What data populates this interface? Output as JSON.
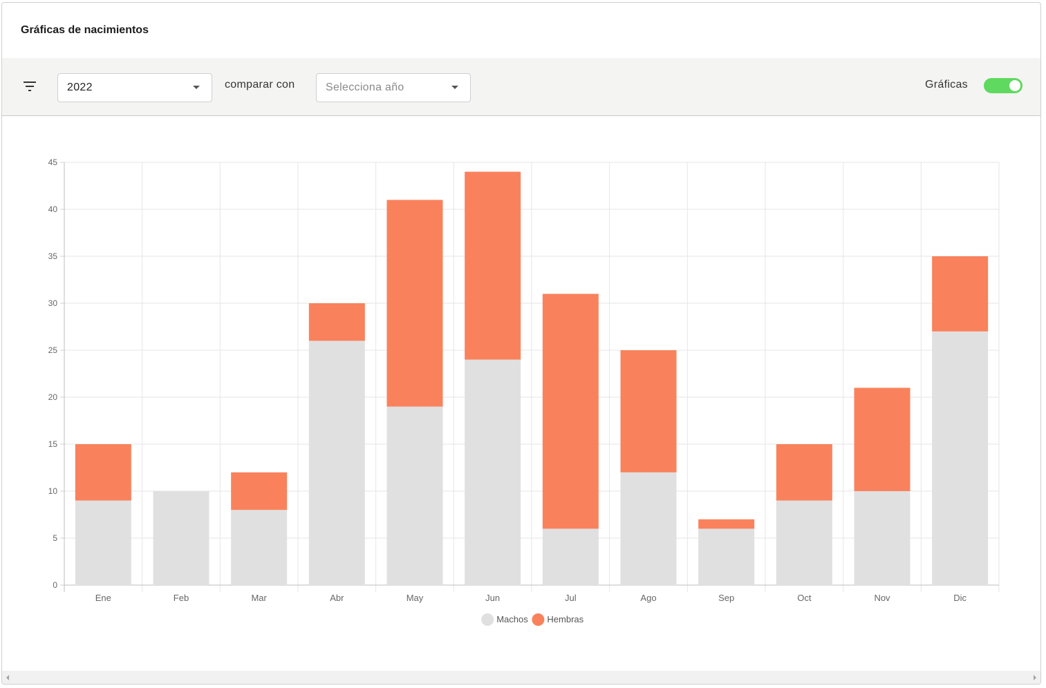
{
  "header": {
    "title": "Gráficas de nacimientos"
  },
  "toolbar": {
    "filter_icon": "filter-icon",
    "year_select": {
      "value": "2022"
    },
    "compare_label": "comparar con",
    "compare_select": {
      "placeholder": "Selecciona año"
    },
    "toggle_label": "Gráficas",
    "toggle_on": true,
    "toggle_color": "#5fd95f"
  },
  "chart_data": {
    "type": "bar",
    "stacked": true,
    "categories": [
      "Ene",
      "Feb",
      "Mar",
      "Abr",
      "May",
      "Jun",
      "Jul",
      "Ago",
      "Sep",
      "Oct",
      "Nov",
      "Dic"
    ],
    "series": [
      {
        "name": "Machos",
        "color": "#e0e0e0",
        "values": [
          9,
          10,
          8,
          26,
          19,
          24,
          6,
          12,
          6,
          9,
          10,
          27
        ]
      },
      {
        "name": "Hembras",
        "color": "#f9825c",
        "values": [
          6,
          0,
          4,
          4,
          22,
          20,
          25,
          13,
          1,
          6,
          11,
          8
        ]
      }
    ],
    "ylim": [
      0,
      45
    ],
    "yticks": [
      0,
      5,
      10,
      15,
      20,
      25,
      30,
      35,
      40,
      45
    ],
    "grid": true,
    "legend_position": "bottom-center"
  }
}
